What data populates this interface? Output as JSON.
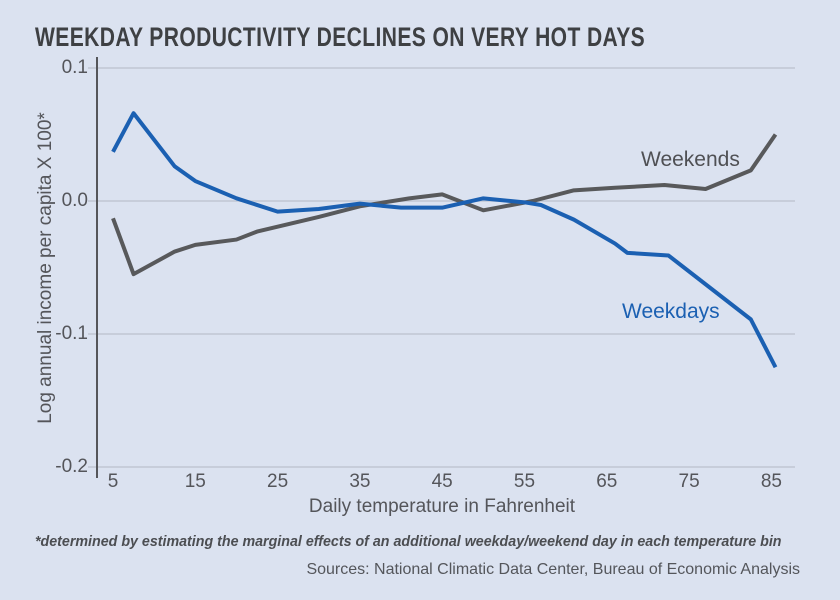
{
  "title": "WEEKDAY PRODUCTIVITY DECLINES ON VERY HOT DAYS",
  "footnote": "*determined by estimating the marginal effects of an additional weekday/weekend day in each temperature bin",
  "sources": "Sources: National Climatic Data Center, Bureau of Economic Analysis",
  "colors": {
    "background": "#dbe2f0",
    "title_text": "#3e4043",
    "axis_text": "#54555a",
    "axis_line": "#55565a",
    "gridline": "#c7cdda",
    "weekends_line": "#58595b",
    "weekdays_line": "#1b60b2"
  },
  "chart_data": {
    "type": "line",
    "title": "WEEKDAY PRODUCTIVITY DECLINES ON VERY HOT DAYS",
    "xlabel": "Daily temperature in Fahrenheit",
    "ylabel": "Log annual income per capita X 100*",
    "xlim": [
      3,
      88
    ],
    "ylim": [
      -0.2,
      0.1
    ],
    "grid": "horizontal",
    "legend_position": "inline-labels",
    "x_ticks": [
      "5",
      "15",
      "25",
      "35",
      "45",
      "55",
      "65",
      "75",
      "85"
    ],
    "x_tick_values": [
      5,
      15,
      25,
      35,
      45,
      55,
      65,
      75,
      85
    ],
    "y_ticks": [
      "0.1",
      "0.0",
      "-0.1",
      "-0.2"
    ],
    "y_tick_values": [
      0.1,
      0.0,
      -0.1,
      -0.2
    ],
    "series": [
      {
        "name": "Weekends",
        "color": "#58595b",
        "points": [
          [
            5,
            -0.013
          ],
          [
            7.5,
            -0.055
          ],
          [
            12.5,
            -0.038
          ],
          [
            15,
            -0.033
          ],
          [
            20,
            -0.029
          ],
          [
            22.5,
            -0.023
          ],
          [
            30,
            -0.012
          ],
          [
            35,
            -0.004
          ],
          [
            41,
            0.002
          ],
          [
            45,
            0.005
          ],
          [
            50,
            -0.007
          ],
          [
            56,
            0.0
          ],
          [
            61,
            0.008
          ],
          [
            66,
            0.01
          ],
          [
            72,
            0.012
          ],
          [
            77,
            0.009
          ],
          [
            82.5,
            0.023
          ],
          [
            85.5,
            0.05
          ]
        ]
      },
      {
        "name": "Weekdays",
        "color": "#1b60b2",
        "points": [
          [
            5,
            0.037
          ],
          [
            7.5,
            0.066
          ],
          [
            12.5,
            0.026
          ],
          [
            15,
            0.015
          ],
          [
            20,
            0.002
          ],
          [
            25,
            -0.008
          ],
          [
            30,
            -0.006
          ],
          [
            35,
            -0.002
          ],
          [
            40,
            -0.005
          ],
          [
            45,
            -0.005
          ],
          [
            50,
            0.002
          ],
          [
            55,
            -0.001
          ],
          [
            57,
            -0.003
          ],
          [
            61,
            -0.014
          ],
          [
            66,
            -0.032
          ],
          [
            67.5,
            -0.039
          ],
          [
            72.5,
            -0.041
          ],
          [
            82.5,
            -0.089
          ],
          [
            85.5,
            -0.125
          ]
        ]
      }
    ]
  }
}
